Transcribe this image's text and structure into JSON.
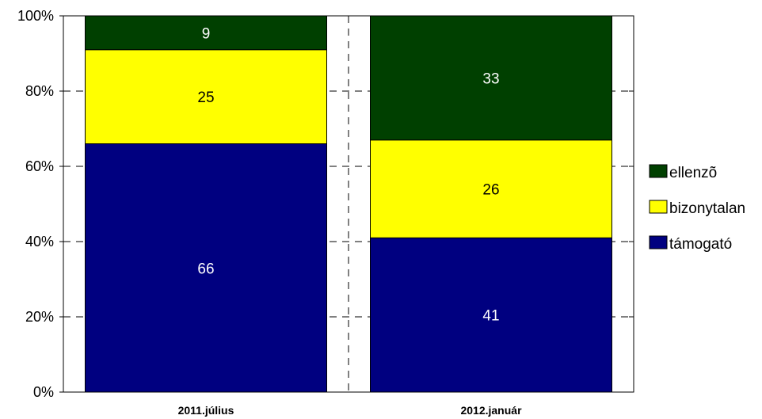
{
  "chart_data": {
    "type": "bar",
    "stacked": "percent",
    "categories": [
      "2011.július",
      "2012.január"
    ],
    "series": [
      {
        "name": "támogató",
        "values": [
          66,
          41
        ],
        "color": "#000080",
        "label_color": "#ffffff"
      },
      {
        "name": "bizonytalan",
        "values": [
          25,
          26
        ],
        "color": "#ffff00",
        "label_color": "#000000"
      },
      {
        "name": "ellenzõ",
        "values": [
          9,
          33
        ],
        "color": "#004000",
        "label_color": "#ffffff"
      }
    ],
    "y_ticks": [
      "0%",
      "20%",
      "40%",
      "60%",
      "80%",
      "100%"
    ],
    "ylim": [
      0,
      100
    ],
    "grid": "dashed",
    "legend": {
      "position": "right",
      "order": [
        "ellenzõ",
        "bizonytalan",
        "támogató"
      ]
    },
    "title": "",
    "xlabel": "",
    "ylabel": ""
  }
}
